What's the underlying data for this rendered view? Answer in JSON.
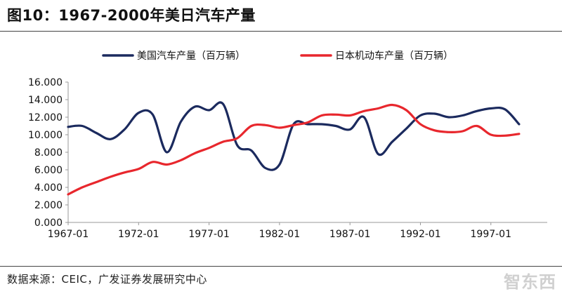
{
  "title": "图10：1967-2000年美日汽车产量",
  "source": "数据来源：CEIC，广发证券发展研究中心",
  "watermark": "智东西",
  "colors": {
    "us": "#1b2a5e",
    "jp": "#e8272d",
    "axis": "#999999",
    "text": "#111111"
  },
  "chart_data": {
    "type": "line",
    "legend_position": "top",
    "grid": false,
    "ylim": [
      0,
      16
    ],
    "yticks": [
      "0.000",
      "2.000",
      "4.000",
      "6.000",
      "8.000",
      "10.000",
      "12.000",
      "14.000",
      "16.000"
    ],
    "xlim": [
      1967,
      2001
    ],
    "xticks": [
      "1967-01",
      "1972-01",
      "1977-01",
      "1982-01",
      "1987-01",
      "1992-01",
      "1997-01"
    ],
    "x": [
      1967,
      1968,
      1969,
      1970,
      1971,
      1972,
      1973,
      1974,
      1975,
      1976,
      1977,
      1978,
      1979,
      1980,
      1981,
      1982,
      1983,
      1984,
      1985,
      1986,
      1987,
      1988,
      1989,
      1990,
      1991,
      1992,
      1993,
      1994,
      1995,
      1996,
      1997,
      1998,
      1999,
      2000
    ],
    "series": [
      {
        "name": "美国汽车产量（百万辆）",
        "values": [
          10.9,
          11.0,
          10.2,
          9.5,
          10.6,
          12.5,
          12.3,
          8.0,
          11.5,
          13.2,
          12.8,
          13.5,
          8.8,
          8.2,
          6.2,
          6.6,
          11.2,
          11.2,
          11.2,
          11.0,
          10.6,
          12.0,
          7.8,
          9.2,
          10.7,
          12.2,
          12.4,
          12.0,
          12.2,
          12.7,
          13.0,
          12.9,
          11.2,
          null
        ]
      },
      {
        "name": "日本机动车产量（百万辆）",
        "values": [
          3.2,
          4.0,
          4.6,
          5.2,
          5.7,
          6.1,
          6.9,
          6.6,
          7.1,
          7.9,
          8.5,
          9.2,
          9.6,
          11.0,
          11.1,
          10.8,
          11.1,
          11.4,
          12.2,
          12.3,
          12.2,
          12.7,
          13.0,
          13.4,
          12.8,
          11.2,
          10.5,
          10.3,
          10.4,
          11.0,
          10.0,
          9.9,
          10.1,
          null
        ]
      }
    ]
  }
}
